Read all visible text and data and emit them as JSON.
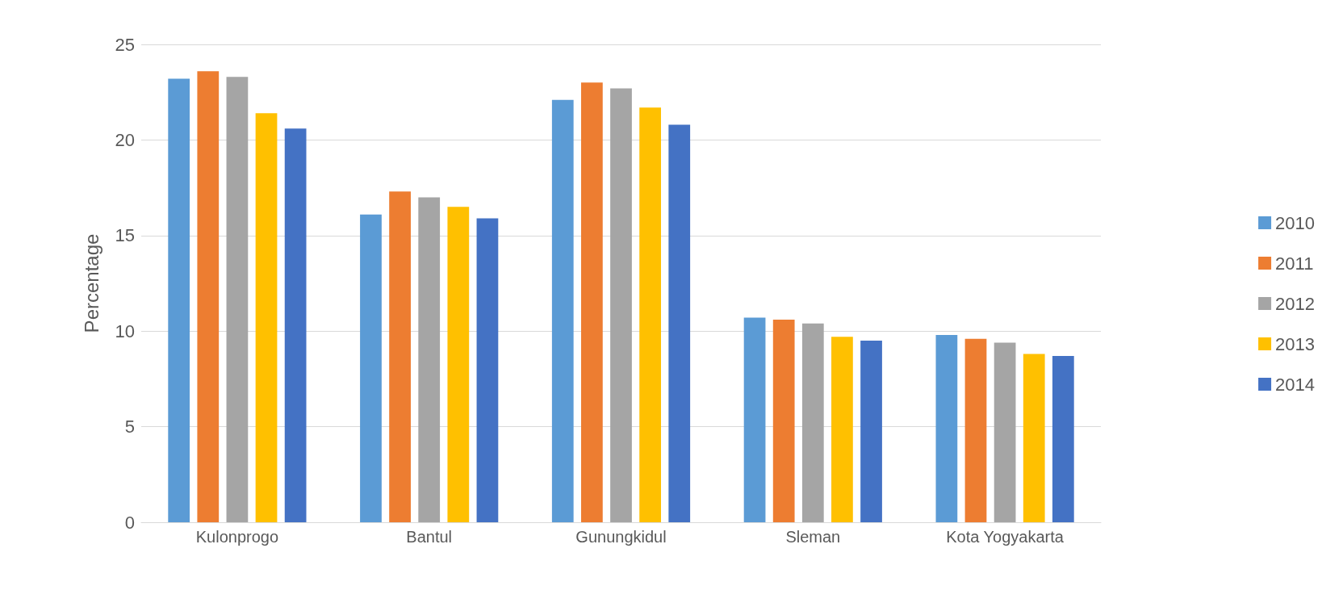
{
  "chart_data": {
    "type": "bar",
    "ylabel": "Percentage",
    "categories": [
      "Kulonprogo",
      "Bantul",
      "Gunungkidul",
      "Sleman",
      "Kota Yogyakarta"
    ],
    "series": [
      {
        "name": "2010",
        "color": "#5b9bd5",
        "values": [
          23.2,
          16.1,
          22.1,
          10.7,
          9.8
        ]
      },
      {
        "name": "2011",
        "color": "#ed7d31",
        "values": [
          23.6,
          17.3,
          23.0,
          10.6,
          9.6
        ]
      },
      {
        "name": "2012",
        "color": "#a5a5a5",
        "values": [
          23.3,
          17.0,
          22.7,
          10.4,
          9.4
        ]
      },
      {
        "name": "2013",
        "color": "#ffc000",
        "values": [
          21.4,
          16.5,
          21.7,
          9.7,
          8.8
        ]
      },
      {
        "name": "2014",
        "color": "#4472c4",
        "values": [
          20.6,
          15.9,
          20.8,
          9.5,
          8.7
        ]
      }
    ],
    "ylim": [
      0,
      25
    ],
    "yticks": [
      0,
      5,
      10,
      15,
      20,
      25
    ],
    "grid": "y",
    "legend": "right"
  }
}
